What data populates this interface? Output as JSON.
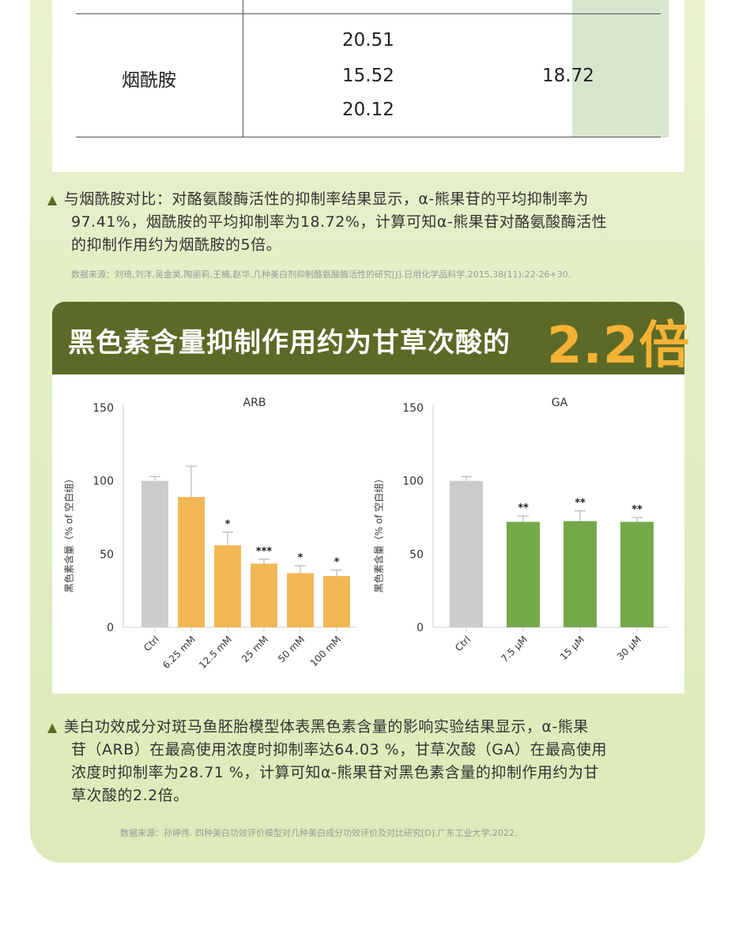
{
  "table": {
    "row_label": "烟酰胺",
    "values": [
      "20.51",
      "15.52",
      "20.12"
    ],
    "average": "18.72"
  },
  "note1": {
    "lines": [
      "与烟酰胺对比：对酪氨酸酶活性的抑制率结果显示，α-熊果苷的平均抑制率为",
      "97.41%，烟酰胺的平均抑制率为18.72%，计算可知α-熊果苷对酪氨酸酶活性",
      "的抑制作用约为烟酰胺的5倍。"
    ],
    "source": "数据来源：刘琦,刘洋,吴金昊,陶丽莉,王楠,赵华.几种美白剂抑制酪氨酸酶活性的研究[J].日用化学品科学,2015,38(11):22-26+30."
  },
  "banner": {
    "title": "黑色素含量抑制作用约为甘草次酸的",
    "highlight": "2.2倍"
  },
  "note2": {
    "lines": [
      "美白功效成分对斑马鱼胚胎模型体表黑色素含量的影响实验结果显示，α-熊果",
      "苷（ARB）在最高使用浓度时抑制率达64.03 %，甘草次酸（GA）在最高使用",
      "浓度时抑制率为28.71 %，计算可知α-熊果苷对黑色素含量的抑制作用约为甘",
      "草次酸的2.2倍。"
    ],
    "source": "数据来源：孙婷伟. 四种美白功效评价模型对几种美白成分功效评价及对比研究[D].广东工业大学,2022."
  },
  "colors": {
    "panel": "#e3eec4",
    "banner": "#5c6a27",
    "highlight": "#f5b335",
    "ctrl_bar": "#cccccc",
    "arb_bar": "#f2b755",
    "ga_bar": "#74a94a"
  },
  "chart_data": [
    {
      "type": "bar",
      "title": "ARB",
      "ylabel": "黑色素含量（% of 空白组）",
      "ylim": [
        0,
        150
      ],
      "yticks": [
        0,
        50,
        100,
        150
      ],
      "categories": [
        "Ctrl",
        "6.25 mM",
        "12.5 mM",
        "25 mM",
        "50 mM",
        "100 mM"
      ],
      "values": [
        100,
        89,
        56,
        43.5,
        37,
        35
      ],
      "errors": [
        3,
        21,
        9,
        3,
        5,
        4
      ],
      "significance": [
        "",
        "",
        "*",
        "***",
        "*",
        "*"
      ],
      "bar_colors": [
        "#cccccc",
        "#f2b755",
        "#f2b755",
        "#f2b755",
        "#f2b755",
        "#f2b755"
      ]
    },
    {
      "type": "bar",
      "title": "GA",
      "ylabel": "黑色素含量（% of 空白组）",
      "ylim": [
        0,
        150
      ],
      "yticks": [
        0,
        50,
        100,
        150
      ],
      "categories": [
        "Ctrl",
        "7.5 μM",
        "15 μM",
        "30 μM"
      ],
      "values": [
        100,
        72,
        72.5,
        72
      ],
      "errors": [
        3,
        4,
        7,
        3
      ],
      "significance": [
        "",
        "**",
        "**",
        "**"
      ],
      "bar_colors": [
        "#cccccc",
        "#74a94a",
        "#74a94a",
        "#74a94a"
      ]
    }
  ]
}
